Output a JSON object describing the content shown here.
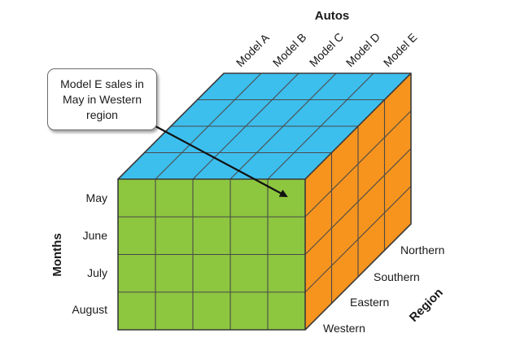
{
  "title": "Autos",
  "models": [
    "Model A",
    "Model B",
    "Model C",
    "Model D",
    "Model E"
  ],
  "months_label": "Months",
  "months": [
    "May",
    "June",
    "July",
    "August"
  ],
  "region_label": "Region",
  "regions": [
    "Northern",
    "Southern",
    "Eastern",
    "Western"
  ],
  "callout": "Model E sales in May in Western region",
  "colors": {
    "top": "#3dbfee",
    "front": "#8dc63f",
    "side": "#f7941d",
    "grid": "#4a4a4a"
  }
}
